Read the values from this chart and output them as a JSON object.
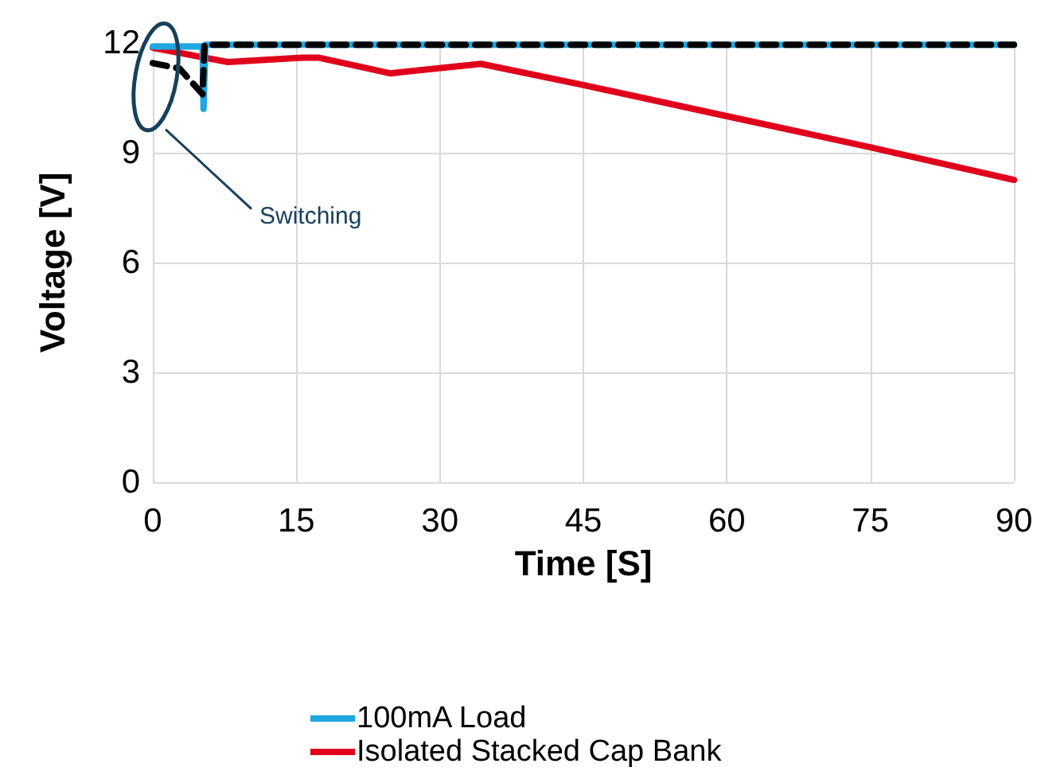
{
  "chart_data": {
    "type": "line",
    "xlabel": "Time [S]",
    "ylabel": "Voltage [V]",
    "xlim": [
      0,
      90
    ],
    "xticks": [
      0,
      15,
      30,
      45,
      60,
      75,
      90
    ],
    "ylim": [
      0,
      12
    ],
    "yticks": [
      0,
      3,
      6,
      9,
      12
    ],
    "grid": true,
    "legend": "bottom",
    "marker": "none",
    "annotations": [
      "Switching"
    ],
    "series": [
      {
        "name": "100mA Load",
        "color": "#1ea7e1",
        "x": [
          0,
          5.2,
          5.3,
          5.5,
          90
        ],
        "values": [
          11.9,
          11.9,
          10.2,
          11.95,
          11.95
        ]
      },
      {
        "color": "#000000",
        "line_style": "dashed",
        "x": [
          0,
          2.8,
          5.2,
          5.4,
          90
        ],
        "values": [
          11.45,
          11.3,
          10.6,
          11.95,
          11.95
        ]
      },
      {
        "name": "Isolated Stacked Cap Bank",
        "color": "#e0001b",
        "x": [
          0,
          7.8,
          15.6,
          17.3,
          24.8,
          34.3,
          45,
          60,
          75,
          90
        ],
        "values": [
          11.87,
          11.48,
          11.6,
          11.6,
          11.17,
          11.43,
          10.85,
          10.0,
          9.15,
          8.26
        ]
      }
    ]
  }
}
